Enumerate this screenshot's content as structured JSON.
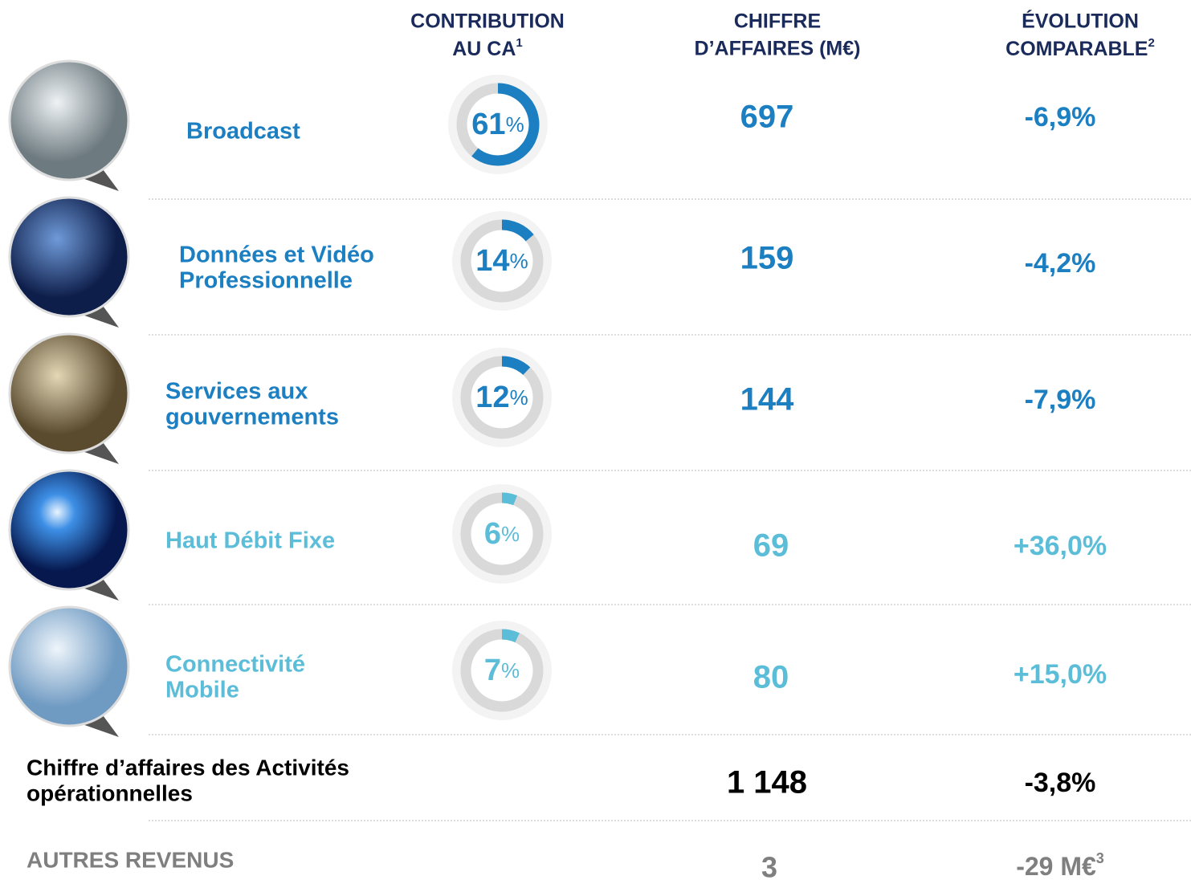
{
  "header": {
    "columns": [
      {
        "lines": [
          "CONTRIBUTION",
          "AU CA"
        ],
        "note": "1"
      },
      {
        "lines": [
          "CHIFFRE",
          "D’AFFAIRES (M€)"
        ]
      },
      {
        "lines": [
          "ÉVOLUTION",
          "COMPARABLE"
        ],
        "note": "2"
      }
    ]
  },
  "contribution_unit": "%",
  "rows": [
    {
      "label": [
        "Broadcast"
      ],
      "contribution": 61,
      "revenue": 697,
      "evolution": "-6,9%",
      "color": "#1b7fc1"
    },
    {
      "label": [
        "Données et Vidéo",
        "Professionnelle"
      ],
      "contribution": 14,
      "revenue": 159,
      "evolution": "-4,2%",
      "color": "#1b7fc1"
    },
    {
      "label": [
        "Services aux",
        "gouvernements"
      ],
      "contribution": 12,
      "revenue": 144,
      "evolution": "-7,9%",
      "color": "#1b7fc1"
    },
    {
      "label": [
        "Haut Débit Fixe"
      ],
      "contribution": 6,
      "revenue": 69,
      "evolution": "+36,0%",
      "color": "#5bbdd8"
    },
    {
      "label": [
        "Connectivité",
        "Mobile"
      ],
      "contribution": 7,
      "revenue": 80,
      "evolution": "+15,0%",
      "color": "#5bbdd8"
    }
  ],
  "total": {
    "label": [
      "Chiffre d’affaires des Activités",
      "opérationnelles"
    ],
    "revenue": "1 148",
    "evolution": "-3,8%"
  },
  "other": {
    "label": "AUTRES REVENUS",
    "revenue": 3,
    "evolution": "-29 M€",
    "note": "3"
  }
}
